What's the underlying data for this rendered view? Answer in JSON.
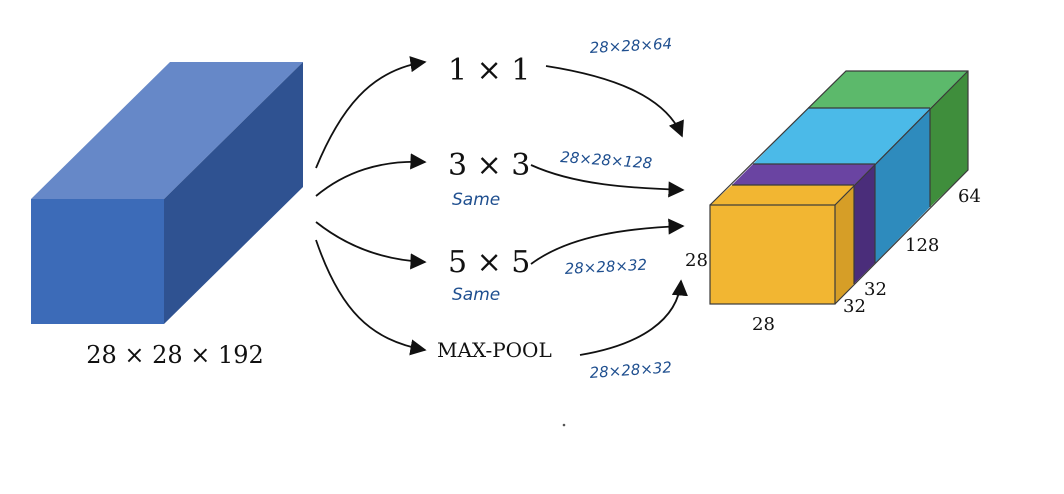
{
  "input": {
    "label": "28 × 28 × 192",
    "colors": {
      "front": "#3c6bb8",
      "top": "#6688c8",
      "side": "#2f5291"
    }
  },
  "branches": [
    {
      "op": "1 × 1",
      "note": "",
      "output_dims": "28×28×64"
    },
    {
      "op": "3 × 3",
      "note": "Same",
      "output_dims": "28×28×128"
    },
    {
      "op": "5 × 5",
      "note": "Same",
      "output_dims": "28×28×32"
    },
    {
      "op": "MAX-POOL",
      "note": "",
      "output_dims": "28×28×32"
    }
  ],
  "output": {
    "height_label": "28",
    "width_label": "28",
    "depth_labels": [
      "32",
      "32",
      "128",
      "64"
    ],
    "colors": {
      "orange": "#f2b632",
      "orange_side": "#d69e27",
      "purple": "#6a44a2",
      "purple_side": "#4a2d7a",
      "blue": "#4bbae8",
      "blue_side": "#2e8bbd",
      "green": "#5cb96b",
      "green_side": "#3f8e3c"
    }
  }
}
